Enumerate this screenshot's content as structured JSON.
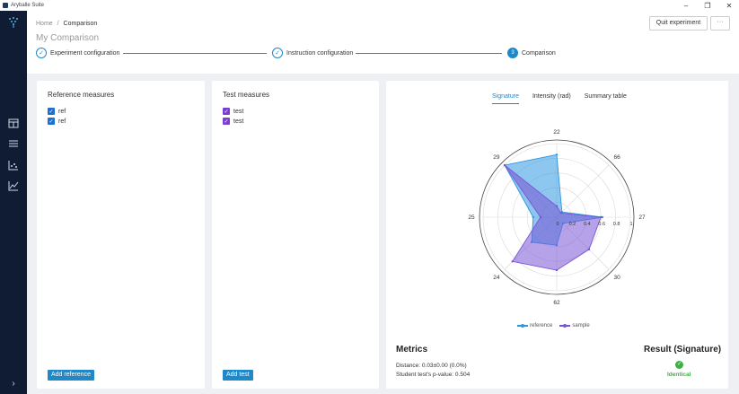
{
  "window": {
    "title": "Aryballe Suite",
    "controls": [
      "–",
      "❐",
      "✕"
    ]
  },
  "breadcrumb": {
    "home": "Home",
    "separator": "/",
    "current": "Comparison"
  },
  "page_title": "My Comparison",
  "header_actions": {
    "quit_label": "Quit experiment",
    "more_label": "···"
  },
  "steps": [
    {
      "label": "Experiment configuration",
      "mark": "✓"
    },
    {
      "label": "Instruction configuration",
      "mark": "✓"
    },
    {
      "label": "Comparison",
      "mark": "3"
    }
  ],
  "reference_panel": {
    "title": "Reference measures",
    "items": [
      "ref",
      "ref"
    ],
    "add_label": "Add reference",
    "check_color": "#1e6fd0"
  },
  "test_panel": {
    "title": "Test measures",
    "items": [
      "test",
      "test"
    ],
    "add_label": "Add test",
    "check_color": "#7b3fd0"
  },
  "tabs": [
    {
      "label": "Signature",
      "active": true
    },
    {
      "label": "Intensity (rad)",
      "active": false
    },
    {
      "label": "Summary table",
      "active": false
    }
  ],
  "chart_data": {
    "type": "radar",
    "angular_labels": [
      "22",
      "66",
      "27",
      "30",
      "62",
      "24",
      "25",
      "29"
    ],
    "radial_ticks": [
      "0",
      "0.2",
      "0.4",
      "0.6",
      "0.8",
      "1"
    ],
    "radial_range": [
      0,
      1
    ],
    "series": [
      {
        "name": "reference",
        "color": "#2f97e0",
        "values": [
          0.85,
          0.1,
          0.62,
          0.12,
          0.38,
          0.48,
          0.32,
          1.0
        ]
      },
      {
        "name": "sample",
        "color": "#7a55d6",
        "values": [
          0.15,
          0.08,
          0.6,
          0.62,
          0.72,
          0.85,
          0.22,
          1.0
        ]
      }
    ],
    "legend_position": "bottom-center"
  },
  "metrics": {
    "title": "Metrics",
    "distance": "Distance: 0.03±0.00 (0.0%)",
    "p_value": "Student test's p-value: 0.504"
  },
  "result": {
    "title": "Result (Signature)",
    "label": "Identical",
    "icon": "✓",
    "color": "#3cb043"
  }
}
